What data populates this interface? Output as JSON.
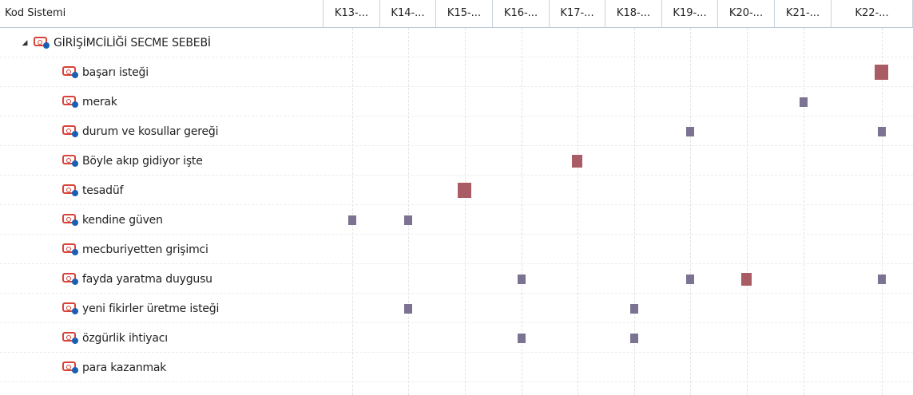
{
  "header": {
    "first_label": "Kod Sistemi",
    "columns": [
      "K13-...",
      "K14-...",
      "K15-...",
      "K16-...",
      "K17-...",
      "K18-...",
      "K19-...",
      "K20-...",
      "K21-...",
      "K22-..."
    ]
  },
  "tree": {
    "root": {
      "label": "GİRİŞİMCİLİĞİ SECME SEBEBİ",
      "expander": "◢",
      "icon": "code-tag-icon"
    },
    "items": [
      {
        "label": "başarı isteği",
        "markers": [
          {
            "col": 9,
            "size": "large"
          }
        ]
      },
      {
        "label": "merak",
        "markers": [
          {
            "col": 8,
            "size": "small"
          }
        ]
      },
      {
        "label": "durum ve kosullar gereği",
        "markers": [
          {
            "col": 6,
            "size": "small"
          },
          {
            "col": 9,
            "size": "small"
          }
        ]
      },
      {
        "label": "Böyle akıp gidiyor işte",
        "markers": [
          {
            "col": 4,
            "size": "medium"
          }
        ]
      },
      {
        "label": "tesadüf",
        "markers": [
          {
            "col": 2,
            "size": "large"
          }
        ]
      },
      {
        "label": "kendine güven",
        "markers": [
          {
            "col": 0,
            "size": "small"
          },
          {
            "col": 1,
            "size": "small"
          }
        ]
      },
      {
        "label": "mecburiyetten grişimci",
        "markers": []
      },
      {
        "label": "fayda yaratma duygusu",
        "markers": [
          {
            "col": 3,
            "size": "small"
          },
          {
            "col": 6,
            "size": "small"
          },
          {
            "col": 7,
            "size": "medium"
          },
          {
            "col": 9,
            "size": "small"
          }
        ]
      },
      {
        "label": "yeni fikirler üretme isteği",
        "markers": [
          {
            "col": 1,
            "size": "small"
          },
          {
            "col": 5,
            "size": "small"
          }
        ]
      },
      {
        "label": "özgürlik ihtiyacı",
        "markers": [
          {
            "col": 3,
            "size": "small"
          },
          {
            "col": 5,
            "size": "small"
          }
        ]
      },
      {
        "label": "para kazanmak",
        "markers": []
      }
    ]
  },
  "colors": {
    "small_marker": "#7b7391",
    "large_marker": "#a95c63",
    "icon_red": "#d8433a",
    "icon_blue": "#1b5fb3"
  }
}
